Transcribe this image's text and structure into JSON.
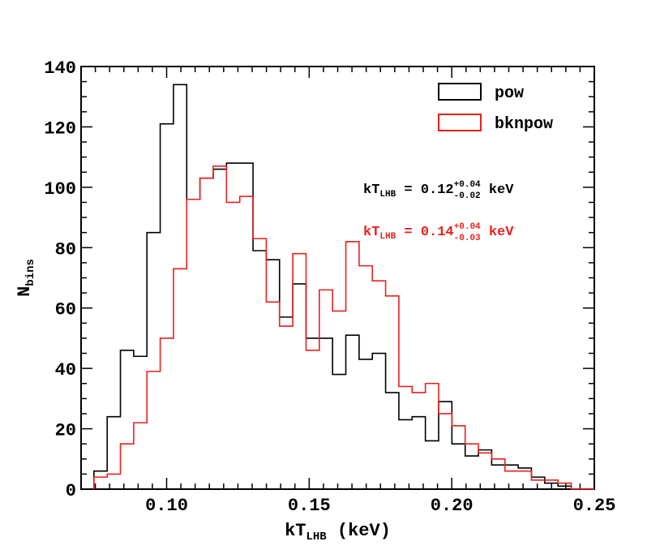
{
  "chart_data": {
    "type": "histogram",
    "xlabel": {
      "main": "kT",
      "sub": "LHB",
      "tail": " (keV)"
    },
    "ylabel": {
      "main": "N",
      "sub": "bins"
    },
    "xlim": [
      0.07,
      0.25
    ],
    "ylim": [
      0,
      140
    ],
    "xticks": [
      {
        "value": 0.1,
        "label": "0.10"
      },
      {
        "value": 0.15,
        "label": "0.15"
      },
      {
        "value": 0.2,
        "label": "0.20"
      },
      {
        "value": 0.25,
        "label": "0.25"
      }
    ],
    "yticks": [
      {
        "value": 0,
        "label": "0"
      },
      {
        "value": 20,
        "label": "20"
      },
      {
        "value": 40,
        "label": "40"
      },
      {
        "value": 60,
        "label": "60"
      },
      {
        "value": 80,
        "label": "80"
      },
      {
        "value": 100,
        "label": "100"
      },
      {
        "value": 120,
        "label": "120"
      },
      {
        "value": 140,
        "label": "140"
      }
    ],
    "bin_start": 0.0745,
    "bin_width": 0.00465,
    "legend_position": "top-right",
    "series": [
      {
        "name": "pow",
        "color": "#000000",
        "values": [
          6,
          24,
          46,
          44,
          85,
          121,
          134,
          96,
          103,
          106,
          108,
          108,
          79,
          76,
          57,
          68,
          50,
          50,
          38,
          51,
          43,
          45,
          32,
          23,
          24,
          16,
          29,
          15,
          11,
          13,
          8,
          8,
          7,
          4,
          2,
          1,
          0,
          0
        ]
      },
      {
        "name": "bknpow",
        "color": "#e8211d",
        "values": [
          4,
          5,
          15,
          22,
          39,
          50,
          73,
          96,
          103,
          107,
          95,
          97,
          83,
          62,
          54,
          78,
          46,
          66,
          59,
          82,
          74,
          69,
          64,
          34,
          32,
          35,
          25,
          21,
          15,
          12,
          10,
          6,
          6,
          3,
          3,
          2,
          0,
          0
        ]
      }
    ],
    "annotations": [
      {
        "series": "pow",
        "color": "#000000",
        "pre": "kT",
        "sub": "LHB",
        "eq": " = 0.12",
        "sup_err": "+0.04",
        "sub_err": "-0.02",
        "unit": " keV"
      },
      {
        "series": "bknpow",
        "color": "#e8211d",
        "pre": "kT",
        "sub": "LHB",
        "eq": " = 0.14",
        "sup_err": "+0.04",
        "sub_err": "-0.03",
        "unit": " keV"
      }
    ]
  }
}
